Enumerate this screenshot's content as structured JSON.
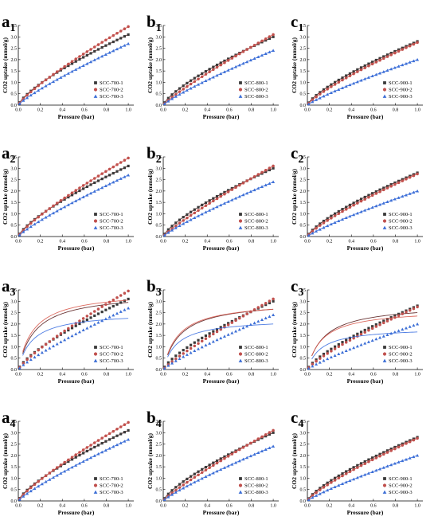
{
  "colors": {
    "series_1": "#3a3a3a",
    "series_2": "#c0504d",
    "series_3": "#3d6fd6",
    "fit_dark": "#5a1f1f",
    "fit_red": "#d95a4e",
    "fit_blue": "#3b6fe0"
  },
  "markers": [
    "square",
    "circle",
    "triangle"
  ],
  "chart_data": [
    {
      "type": "scatter",
      "panel_letter": "a",
      "panel_sub": "1",
      "xlabel": "Pressure (bar)",
      "ylabel": "CO2 uptake (mmol/g)",
      "xlim": [
        0,
        1.05
      ],
      "ylim": [
        0,
        3.5
      ],
      "xticks": [
        "0.0",
        "0.2",
        "0.4",
        "0.6",
        "0.8",
        "1.0"
      ],
      "yticks": [
        "0.0",
        "0.5",
        "1.0",
        "1.5",
        "2.0",
        "2.5",
        "3.0",
        "3.5"
      ],
      "legend": "bottom-right",
      "series": [
        {
          "name": "SCC-700-1",
          "y_at_1bar": 3.1,
          "curvature": 0.74
        },
        {
          "name": "SCC-700-2",
          "y_at_1bar": 3.45,
          "curvature": 0.82
        },
        {
          "name": "SCC-700-3",
          "y_at_1bar": 2.7,
          "curvature": 0.84
        }
      ],
      "fit_style": "smooth"
    },
    {
      "type": "scatter",
      "panel_letter": "b",
      "panel_sub": "1",
      "xlabel": "Pressure (bar)",
      "ylabel": "CO2 uptake (mmol/g)",
      "xlim": [
        0,
        1.05
      ],
      "ylim": [
        0,
        3.5
      ],
      "xticks": [
        "0.0",
        "0.2",
        "0.4",
        "0.6",
        "0.8",
        "1.0"
      ],
      "yticks": [
        "0.0",
        "0.5",
        "1.0",
        "1.5",
        "2.0",
        "2.5",
        "3.0",
        "3.5"
      ],
      "legend": "bottom-right",
      "series": [
        {
          "name": "SCC-800-1",
          "y_at_1bar": 3.0,
          "curvature": 0.74
        },
        {
          "name": "SCC-800-2",
          "y_at_1bar": 3.1,
          "curvature": 0.87
        },
        {
          "name": "SCC-800-3",
          "y_at_1bar": 2.4,
          "curvature": 0.85
        }
      ],
      "fit_style": "smooth"
    },
    {
      "type": "scatter",
      "panel_letter": "c",
      "panel_sub": "1",
      "xlabel": "Pressure (bar)",
      "ylabel": "CO2 uptake (mmol/g)",
      "xlim": [
        0,
        1.05
      ],
      "ylim": [
        0,
        3.5
      ],
      "xticks": [
        "0.0",
        "0.2",
        "0.4",
        "0.6",
        "0.8",
        "1.0"
      ],
      "yticks": [
        "0.0",
        "0.5",
        "1.0",
        "1.5",
        "2.0",
        "2.5",
        "3.0",
        "3.5"
      ],
      "legend": "bottom-right",
      "series": [
        {
          "name": "SCC-900-1",
          "y_at_1bar": 2.8,
          "curvature": 0.74
        },
        {
          "name": "SCC-900-2",
          "y_at_1bar": 2.75,
          "curvature": 0.8
        },
        {
          "name": "SCC-900-3",
          "y_at_1bar": 2.0,
          "curvature": 0.85
        }
      ],
      "fit_style": "smooth"
    },
    {
      "type": "scatter",
      "panel_letter": "a",
      "panel_sub": "2",
      "xlabel": "Pressure (bar)",
      "ylabel": "CO2 uptake (mmol/g)",
      "xlim": [
        0,
        1.05
      ],
      "ylim": [
        0,
        3.5
      ],
      "xticks": [
        "0.0",
        "0.2",
        "0.4",
        "0.6",
        "0.8",
        "1.0"
      ],
      "yticks": [
        "0.0",
        "0.5",
        "1.0",
        "1.5",
        "2.0",
        "2.5",
        "3.0",
        "3.5"
      ],
      "legend": "bottom-right",
      "series": [
        {
          "name": "SCC-700-1",
          "y_at_1bar": 3.1,
          "curvature": 0.74
        },
        {
          "name": "SCC-700-2",
          "y_at_1bar": 3.45,
          "curvature": 0.82
        },
        {
          "name": "SCC-700-3",
          "y_at_1bar": 2.7,
          "curvature": 0.84
        }
      ],
      "fit_style": "smooth"
    },
    {
      "type": "scatter",
      "panel_letter": "b",
      "panel_sub": "2",
      "xlabel": "Pressure (bar)",
      "ylabel": "CO2 uptake (mmol/g)",
      "xlim": [
        0,
        1.05
      ],
      "ylim": [
        0,
        3.5
      ],
      "xticks": [
        "0.0",
        "0.2",
        "0.4",
        "0.6",
        "0.8",
        "1.0"
      ],
      "yticks": [
        "0.0",
        "0.5",
        "1.0",
        "1.5",
        "2.0",
        "2.5",
        "3.0",
        "3.5"
      ],
      "legend": "bottom-right",
      "series": [
        {
          "name": "SCC-800-1",
          "y_at_1bar": 3.0,
          "curvature": 0.74
        },
        {
          "name": "SCC-800-2",
          "y_at_1bar": 3.1,
          "curvature": 0.87
        },
        {
          "name": "SCC-800-3",
          "y_at_1bar": 2.4,
          "curvature": 0.85
        }
      ],
      "fit_style": "smooth"
    },
    {
      "type": "scatter",
      "panel_letter": "c",
      "panel_sub": "2",
      "xlabel": "Pressure (bar)",
      "ylabel": "CO2 uptake (mmol/g)",
      "xlim": [
        0,
        1.05
      ],
      "ylim": [
        0,
        3.5
      ],
      "xticks": [
        "0.0",
        "0.2",
        "0.4",
        "0.6",
        "0.8",
        "1.0"
      ],
      "yticks": [
        "0.0",
        "0.5",
        "1.0",
        "1.5",
        "2.0",
        "2.5",
        "3.0",
        "3.5"
      ],
      "legend": "bottom-right",
      "series": [
        {
          "name": "SCC-900-1",
          "y_at_1bar": 2.8,
          "curvature": 0.74
        },
        {
          "name": "SCC-900-2",
          "y_at_1bar": 2.75,
          "curvature": 0.8
        },
        {
          "name": "SCC-900-3",
          "y_at_1bar": 2.0,
          "curvature": 0.85
        }
      ],
      "fit_style": "smooth"
    },
    {
      "type": "scatter",
      "panel_letter": "a",
      "panel_sub": "3",
      "xlabel": "Pressure (bar)",
      "ylabel": "CO2 uptake (mmol/g)",
      "xlim": [
        0,
        1.05
      ],
      "ylim": [
        0,
        3.5
      ],
      "xticks": [
        "0.0",
        "0.2",
        "0.4",
        "0.6",
        "0.8",
        "1.0"
      ],
      "yticks": [
        "0.0",
        "0.5",
        "1.0",
        "1.5",
        "2.0",
        "2.5",
        "3.0",
        "3.5"
      ],
      "legend": "bottom-right",
      "series": [
        {
          "name": "SCC-700-1",
          "y_at_1bar": 3.1,
          "curvature": 0.74
        },
        {
          "name": "SCC-700-2",
          "y_at_1bar": 3.45,
          "curvature": 0.82
        },
        {
          "name": "SCC-700-3",
          "y_at_1bar": 2.7,
          "curvature": 0.84
        }
      ],
      "fit_style": "langmuir",
      "fit_at_1bar": [
        2.95,
        3.05,
        2.25
      ]
    },
    {
      "type": "scatter",
      "panel_letter": "b",
      "panel_sub": "3",
      "xlabel": "Pressure (bar)",
      "ylabel": "CO2 uptake (mmol/g)",
      "xlim": [
        0,
        1.05
      ],
      "ylim": [
        0,
        3.5
      ],
      "xticks": [
        "0.0",
        "0.2",
        "0.4",
        "0.6",
        "0.8",
        "1.0"
      ],
      "yticks": [
        "0.0",
        "0.5",
        "1.0",
        "1.5",
        "2.0",
        "2.5",
        "3.0",
        "3.5"
      ],
      "legend": "bottom-right",
      "series": [
        {
          "name": "SCC-800-1",
          "y_at_1bar": 3.0,
          "curvature": 0.74
        },
        {
          "name": "SCC-800-2",
          "y_at_1bar": 3.1,
          "curvature": 0.87
        },
        {
          "name": "SCC-800-3",
          "y_at_1bar": 2.4,
          "curvature": 0.85
        }
      ],
      "fit_style": "langmuir",
      "fit_at_1bar": [
        2.65,
        2.65,
        2.0
      ]
    },
    {
      "type": "scatter",
      "panel_letter": "c",
      "panel_sub": "3",
      "xlabel": "Pressure (bar)",
      "ylabel": "CO2 uptake (mmol/g)",
      "xlim": [
        0,
        1.05
      ],
      "ylim": [
        0,
        3.5
      ],
      "xticks": [
        "0.0",
        "0.2",
        "0.4",
        "0.6",
        "0.8",
        "1.0"
      ],
      "yticks": [
        "0.0",
        "0.5",
        "1.0",
        "1.5",
        "2.0",
        "2.5",
        "3.0",
        "3.5"
      ],
      "legend": "bottom-right",
      "series": [
        {
          "name": "SCC-900-1",
          "y_at_1bar": 2.8,
          "curvature": 0.74
        },
        {
          "name": "SCC-900-2",
          "y_at_1bar": 2.75,
          "curvature": 0.8
        },
        {
          "name": "SCC-900-3",
          "y_at_1bar": 2.0,
          "curvature": 0.85
        }
      ],
      "fit_style": "langmuir",
      "fit_at_1bar": [
        2.5,
        2.35,
        1.65
      ]
    },
    {
      "type": "scatter",
      "panel_letter": "a",
      "panel_sub": "4",
      "xlabel": "Pressure (bar)",
      "ylabel": "CO2 uptake (mmol/g)",
      "xlim": [
        0,
        1.05
      ],
      "ylim": [
        0,
        3.5
      ],
      "xticks": [
        "0.0",
        "0.2",
        "0.4",
        "0.6",
        "0.8",
        "1.0"
      ],
      "yticks": [
        "0.0",
        "0.5",
        "1.0",
        "1.5",
        "2.0",
        "2.5",
        "3.0",
        "3.5"
      ],
      "legend": "bottom-right",
      "series": [
        {
          "name": "SCC-700-1",
          "y_at_1bar": 3.1,
          "curvature": 0.74
        },
        {
          "name": "SCC-700-2",
          "y_at_1bar": 3.45,
          "curvature": 0.82
        },
        {
          "name": "SCC-700-3",
          "y_at_1bar": 2.7,
          "curvature": 0.84
        }
      ],
      "fit_style": "smooth"
    },
    {
      "type": "scatter",
      "panel_letter": "b",
      "panel_sub": "4",
      "xlabel": "Pressure (bar)",
      "ylabel": "CO2 uptake (mmol/g)",
      "xlim": [
        0,
        1.05
      ],
      "ylim": [
        0,
        3.5
      ],
      "xticks": [
        "0.0",
        "0.2",
        "0.4",
        "0.6",
        "0.8",
        "1.0"
      ],
      "yticks": [
        "0.0",
        "0.5",
        "1.0",
        "1.5",
        "2.0",
        "2.5",
        "3.0",
        "3.5"
      ],
      "legend": "bottom-right",
      "series": [
        {
          "name": "SCC-800-1",
          "y_at_1bar": 3.0,
          "curvature": 0.74
        },
        {
          "name": "SCC-800-2",
          "y_at_1bar": 3.1,
          "curvature": 0.87
        },
        {
          "name": "SCC-800-3",
          "y_at_1bar": 2.4,
          "curvature": 0.85
        }
      ],
      "fit_style": "smooth"
    },
    {
      "type": "scatter",
      "panel_letter": "c",
      "panel_sub": "4",
      "xlabel": "Pressure (bar)",
      "ylabel": "CO2 uptake (mmol/g)",
      "xlim": [
        0,
        1.05
      ],
      "ylim": [
        0,
        3.5
      ],
      "xticks": [
        "0.0",
        "0.2",
        "0.4",
        "0.6",
        "0.8",
        "1.0"
      ],
      "yticks": [
        "0.0",
        "0.5",
        "1.0",
        "1.5",
        "2.0",
        "2.5",
        "3.0",
        "3.5"
      ],
      "legend": "bottom-right",
      "series": [
        {
          "name": "SCC-900-1",
          "y_at_1bar": 2.8,
          "curvature": 0.74
        },
        {
          "name": "SCC-900-2",
          "y_at_1bar": 2.75,
          "curvature": 0.8
        },
        {
          "name": "SCC-900-3",
          "y_at_1bar": 2.0,
          "curvature": 0.85
        }
      ],
      "fit_style": "smooth"
    }
  ]
}
